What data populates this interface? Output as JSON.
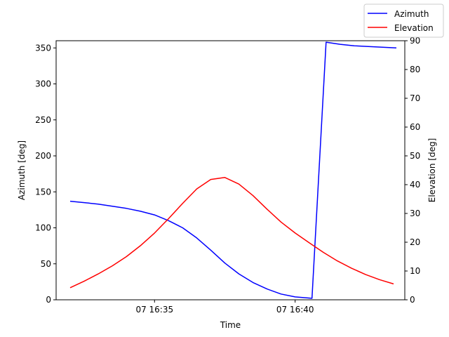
{
  "chart_data": {
    "type": "line",
    "xlabel": "Time",
    "ylabel_left": "Azimuth [deg]",
    "ylabel_right": "Elevation [deg]",
    "xlim": [
      31.5,
      43.9
    ],
    "ylim_left": [
      0,
      360
    ],
    "ylim_right": [
      0,
      90
    ],
    "x_ticks": [
      {
        "value": 35,
        "label": "07 16:35"
      },
      {
        "value": 40,
        "label": "07 16:40"
      }
    ],
    "y_ticks_left": [
      0,
      50,
      100,
      150,
      200,
      250,
      300,
      350
    ],
    "y_ticks_right": [
      0,
      10,
      20,
      30,
      40,
      50,
      60,
      70,
      80,
      90
    ],
    "grid": false,
    "legend": {
      "position": "top-right",
      "entries": [
        "Azimuth",
        "Elevation"
      ]
    },
    "x": [
      32.0,
      32.5,
      33.0,
      33.5,
      34.0,
      34.5,
      35.0,
      35.5,
      36.0,
      36.5,
      37.0,
      37.5,
      38.0,
      38.5,
      39.0,
      39.5,
      40.0,
      40.5,
      41.0,
      41.5,
      42.0,
      42.5,
      43.0,
      43.5
    ],
    "series": [
      {
        "name": "Azimuth",
        "axis": "left",
        "color": "#0000ff",
        "values": [
          137,
          135,
          133,
          130,
          127,
          123,
          118,
          110,
          100,
          86,
          69,
          51,
          36,
          24,
          15,
          8,
          4,
          2,
          358,
          355,
          353,
          352,
          351,
          350
        ],
        "values_note_x": [
          32.0,
          32.5,
          33.0,
          33.5,
          34.0,
          34.5,
          35.0,
          35.5,
          36.0,
          36.5,
          37.0,
          37.5,
          38.0,
          38.5,
          39.0,
          39.5,
          40.0,
          40.6,
          41.1,
          41.6,
          42.1,
          42.6,
          43.1,
          43.6
        ]
      },
      {
        "name": "Elevation",
        "axis": "right",
        "color": "#ff0000",
        "values": [
          4.2,
          6.5,
          9.0,
          11.8,
          15.0,
          18.8,
          23.2,
          28.2,
          33.5,
          38.5,
          41.8,
          42.5,
          40.2,
          36.2,
          31.5,
          27.0,
          23.2,
          19.8,
          16.5,
          13.5,
          11.0,
          8.8,
          7.0,
          5.5
        ]
      }
    ]
  }
}
